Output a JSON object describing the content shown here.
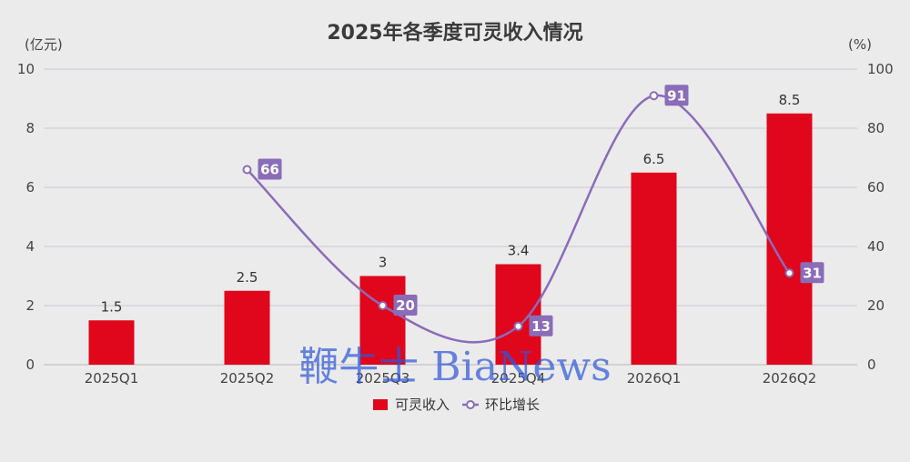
{
  "chart_data": {
    "type": "bar",
    "title": "2025年各季度可灵收入情况",
    "categories": [
      "2025Q1",
      "2025Q2",
      "2025Q3",
      "2025Q4",
      "2026Q1",
      "2026Q2"
    ],
    "y_left": {
      "unit": "(亿元)",
      "ylim": [
        0,
        10
      ],
      "ticks": [
        0,
        2,
        4,
        6,
        8,
        10
      ]
    },
    "y_right": {
      "unit": "(%)",
      "ylim": [
        0,
        100
      ],
      "ticks": [
        0,
        20,
        40,
        60,
        80,
        100
      ]
    },
    "series": [
      {
        "name": "可灵收入",
        "type": "bar",
        "axis": "left",
        "color": "#e0061b",
        "values": [
          1.5,
          2.5,
          3,
          3.4,
          6.5,
          8.5
        ],
        "labels": [
          "1.5",
          "2.5",
          "3",
          "3.4",
          "6.5",
          "8.5"
        ]
      },
      {
        "name": "环比增长",
        "type": "line",
        "axis": "right",
        "color": "#8a6cb8",
        "values": [
          null,
          66,
          20,
          13,
          91,
          31
        ],
        "labels": [
          "",
          "66",
          "20",
          "13",
          "91",
          "31"
        ]
      }
    ],
    "grid": true,
    "legend": "bottom"
  },
  "watermark": "鞭牛士 BiaNews"
}
